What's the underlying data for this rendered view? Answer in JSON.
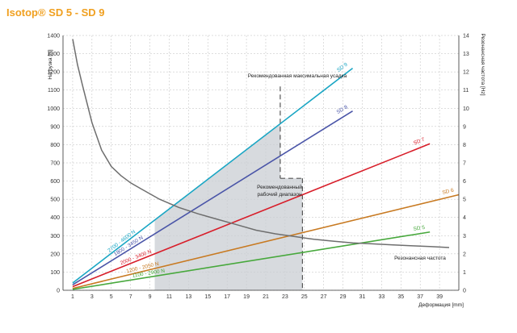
{
  "chart_data": {
    "type": "line",
    "title": "Isotop® SD 5 - SD 9",
    "xlabel": "Деформация [mm]",
    "ylabel": "Нагрузка [N]",
    "y2label": "Резонансная частота [Hz]",
    "xlim": [
      0,
      41
    ],
    "ylim": [
      0,
      1400
    ],
    "y2lim": [
      0,
      14
    ],
    "x_ticks": [
      "1",
      "3",
      "5",
      "7",
      "9",
      "11",
      "13",
      "15",
      "17",
      "19",
      "21",
      "23",
      "25",
      "27",
      "29",
      "31",
      "33",
      "35",
      "37",
      "39"
    ],
    "y_ticks": [
      "0",
      "100",
      "200",
      "300",
      "400",
      "500",
      "600",
      "700",
      "800",
      "900",
      "1000",
      "1100",
      "1200",
      "1300",
      "1400"
    ],
    "y2_ticks": [
      "0",
      "1",
      "2",
      "3",
      "4",
      "5",
      "6",
      "7",
      "8",
      "9",
      "10",
      "11",
      "12",
      "13",
      "14"
    ],
    "grid": true,
    "series": [
      {
        "name": "SD 9",
        "range_label": "2700 - 4600 N",
        "color": "#1aa6c4",
        "x": [
          1,
          30
        ],
        "y": [
          40,
          1220
        ]
      },
      {
        "name": "SD 8",
        "range_label": "1800 - 3450 N",
        "color": "#4a55a8",
        "x": [
          1,
          30
        ],
        "y": [
          30,
          985
        ]
      },
      {
        "name": "SD 7",
        "range_label": "2000 - 3400 N",
        "color": "#d81e2a",
        "x": [
          1,
          38
        ],
        "y": [
          20,
          805
        ]
      },
      {
        "name": "SD 6",
        "range_label": "1200 - 2050 N",
        "color": "#c87a22",
        "x": [
          1,
          41
        ],
        "y": [
          10,
          525
        ]
      },
      {
        "name": "SD 5",
        "range_label": "1100 - 2900 N",
        "color": "#47a83c",
        "x": [
          1,
          38
        ],
        "y": [
          5,
          320
        ]
      }
    ],
    "resonance_curve": {
      "name": "Резонансная частота",
      "color": "#6e6e6e",
      "x": [
        1,
        1.5,
        2,
        3,
        4,
        5,
        6,
        7,
        8,
        9,
        10,
        12,
        14,
        16,
        18,
        20,
        22,
        24,
        26,
        28,
        30,
        32,
        34,
        36,
        38,
        40
      ],
      "y_hz": [
        13.8,
        12.4,
        11.3,
        9.2,
        7.7,
        6.8,
        6.3,
        5.9,
        5.6,
        5.3,
        5.0,
        4.55,
        4.2,
        3.9,
        3.6,
        3.3,
        3.1,
        2.95,
        2.8,
        2.7,
        2.6,
        2.55,
        2.5,
        2.45,
        2.4,
        2.35
      ]
    },
    "annotations": {
      "recommended_max": "Рекомендованная максимальная усадка",
      "recommended_range_line1": "Рекомендованный",
      "recommended_range_line2": "рабочий диапазон",
      "resonance_label": "Резонансная частота"
    },
    "shaded_region": {
      "description_source": "recommended working range",
      "x_start": 9.5,
      "x_step": 22.5,
      "x_end": 24.8,
      "y_step_low": 615,
      "y_step_high": 1150
    }
  }
}
